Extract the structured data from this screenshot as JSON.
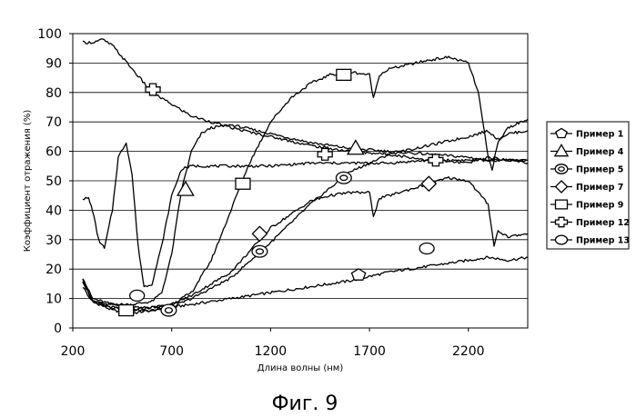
{
  "caption": "Фиг. 9",
  "chart_data": {
    "type": "line",
    "xlabel": "Длина волны (нм)",
    "ylabel": "Коэффициент отражения (%)",
    "xlim": [
      200,
      2500
    ],
    "ylim": [
      0,
      100
    ],
    "xticks": [
      200,
      700,
      1200,
      1700,
      2200
    ],
    "yticks": [
      0,
      10,
      20,
      30,
      40,
      50,
      60,
      70,
      80,
      90,
      100
    ],
    "grid": "horizontal",
    "legend_position": "right",
    "series": [
      {
        "name": "Пример 1",
        "marker": "pentagon",
        "x": [
          250,
          300,
          400,
          500,
          600,
          700,
          800,
          1000,
          1200,
          1400,
          1600,
          1800,
          2000,
          2200,
          2300,
          2400,
          2500
        ],
        "y": [
          17,
          9,
          6,
          5,
          6,
          7,
          8,
          10,
          12,
          14,
          16,
          19,
          21,
          23,
          24,
          23,
          24
        ],
        "marker_x": [
          1645
        ],
        "marker_y": [
          18
        ]
      },
      {
        "name": "Пример 4",
        "marker": "triangle",
        "x": [
          250,
          300,
          400,
          500,
          600,
          650,
          700,
          750,
          800,
          850,
          900,
          1000,
          1200,
          1400,
          1600,
          1800,
          2000,
          2200,
          2300,
          2400,
          2500
        ],
        "y": [
          17,
          10,
          8,
          8,
          9,
          12,
          25,
          47,
          60,
          66,
          68,
          69,
          66,
          63,
          61,
          60,
          59,
          58,
          57,
          57,
          56
        ],
        "marker_x": [
          770,
          1630
        ],
        "marker_y": [
          47,
          61
        ]
      },
      {
        "name": "Пример 5",
        "marker": "double-circle",
        "x": [
          250,
          300,
          400,
          500,
          600,
          700,
          800,
          1000,
          1200,
          1400,
          1600,
          1800,
          2000,
          2200,
          2300,
          2350,
          2400,
          2500
        ],
        "y": [
          16,
          9,
          7,
          6,
          6,
          7,
          10,
          17,
          29,
          42,
          53,
          59,
          62,
          65,
          67,
          64,
          66,
          67
        ],
        "marker_x": [
          685,
          1145,
          1570
        ],
        "marker_y": [
          6,
          26,
          51
        ]
      },
      {
        "name": "Пример 7",
        "marker": "diamond",
        "x": [
          250,
          300,
          400,
          500,
          600,
          700,
          800,
          1000,
          1200,
          1400,
          1500,
          1600,
          1700,
          1720,
          1750,
          1800,
          2000,
          2100,
          2200,
          2250,
          2300,
          2330,
          2350,
          2400,
          2500
        ],
        "y": [
          14,
          9,
          8,
          7,
          7,
          8,
          11,
          19,
          34,
          43,
          45,
          46,
          46,
          38,
          44,
          45,
          49,
          51,
          50,
          46,
          42,
          28,
          33,
          31,
          32
        ],
        "marker_x": [
          1145,
          2000
        ],
        "marker_y": [
          32,
          49
        ]
      },
      {
        "name": "Пример 9",
        "marker": "square",
        "x": [
          250,
          300,
          400,
          500,
          600,
          700,
          800,
          900,
          1000,
          1050,
          1100,
          1200,
          1300,
          1400,
          1500,
          1600,
          1700,
          1720,
          1750,
          1800,
          2000,
          2100,
          2200,
          2250,
          2300,
          2320,
          2350,
          2400,
          2500
        ],
        "y": [
          16,
          9,
          7,
          6,
          7,
          8,
          12,
          23,
          40,
          49,
          57,
          70,
          78,
          83,
          86,
          87,
          86,
          78,
          86,
          88,
          91,
          92,
          90,
          80,
          58,
          54,
          63,
          68,
          71
        ],
        "marker_x": [
          470,
          1060,
          1570
        ],
        "marker_y": [
          6,
          49,
          86
        ]
      },
      {
        "name": "Пример 12",
        "marker": "plus",
        "x": [
          250,
          300,
          350,
          400,
          500,
          600,
          700,
          800,
          1000,
          1200,
          1400,
          1600,
          1800,
          2000,
          2200,
          2300,
          2400,
          2500
        ],
        "y": [
          97,
          97,
          98,
          96,
          88,
          80,
          76,
          72,
          68,
          65,
          62,
          60,
          59,
          57,
          56,
          58,
          57,
          57
        ],
        "marker_x": [
          605,
          1475,
          2035
        ],
        "marker_y": [
          81,
          59,
          57
        ]
      },
      {
        "name": "Пример 13",
        "marker": "circle",
        "x": [
          250,
          280,
          300,
          330,
          360,
          400,
          430,
          470,
          500,
          530,
          560,
          600,
          650,
          700,
          750,
          800,
          1000,
          1200,
          1400,
          1600,
          1800,
          2000,
          2200,
          2300,
          2400,
          2500
        ],
        "y": [
          44,
          44,
          40,
          30,
          27,
          40,
          58,
          63,
          52,
          28,
          14,
          15,
          28,
          45,
          54,
          55,
          55,
          55,
          56,
          56,
          56,
          57,
          57,
          57,
          57,
          57
        ],
        "marker_x": [
          525,
          1990
        ],
        "marker_y": [
          11,
          27
        ]
      }
    ]
  }
}
